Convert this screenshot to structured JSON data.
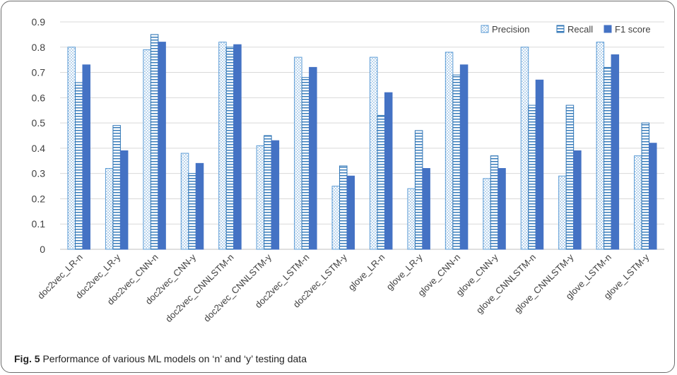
{
  "caption": {
    "label": "Fig. 5",
    "text": " Performance of various ML models on ‘n’ and ‘y’ testing data"
  },
  "colors": {
    "precision": "#5b9bd5",
    "recall": "#2e75b6",
    "f1": "#4472c4"
  },
  "chart_data": {
    "type": "bar",
    "categories": [
      "doc2vec_LR-n",
      "doc2vec_LR-y",
      "doc2vec_CNN-n",
      "doc2vec_CNN-y",
      "doc2vec_CNNLSTM-n",
      "doc2vec_CNNLSTM-y",
      "doc2vec_LSTM-n",
      "doc2vec_LSTM-y",
      "glove_LR-n",
      "glove_LR-y",
      "glove_CNN-n",
      "glove_CNN-y",
      "glove_CNNLSTM-n",
      "glove_CNNLSTM-y",
      "glove_LSTM-n",
      "glove_LSTM-y"
    ],
    "series": [
      {
        "name": "Precision",
        "pattern": "dots",
        "values": [
          0.8,
          0.32,
          0.79,
          0.38,
          0.82,
          0.41,
          0.76,
          0.25,
          0.76,
          0.24,
          0.78,
          0.28,
          0.8,
          0.29,
          0.82,
          0.37
        ]
      },
      {
        "name": "Recall",
        "pattern": "horizontal-lines",
        "values": [
          0.66,
          0.49,
          0.85,
          0.3,
          0.8,
          0.45,
          0.68,
          0.33,
          0.53,
          0.47,
          0.69,
          0.37,
          0.57,
          0.57,
          0.72,
          0.5
        ]
      },
      {
        "name": "F1 score",
        "pattern": "solid",
        "values": [
          0.73,
          0.39,
          0.82,
          0.34,
          0.81,
          0.43,
          0.72,
          0.29,
          0.62,
          0.32,
          0.73,
          0.32,
          0.67,
          0.39,
          0.77,
          0.42
        ]
      }
    ],
    "yticks": [
      "0",
      "0.1",
      "0.2",
      "0.3",
      "0.4",
      "0.5",
      "0.6",
      "0.7",
      "0.8",
      "0.9"
    ],
    "ylim": [
      0,
      0.9
    ],
    "title": "",
    "xlabel": "",
    "ylabel": "",
    "legend": "top-right",
    "grid": true
  }
}
